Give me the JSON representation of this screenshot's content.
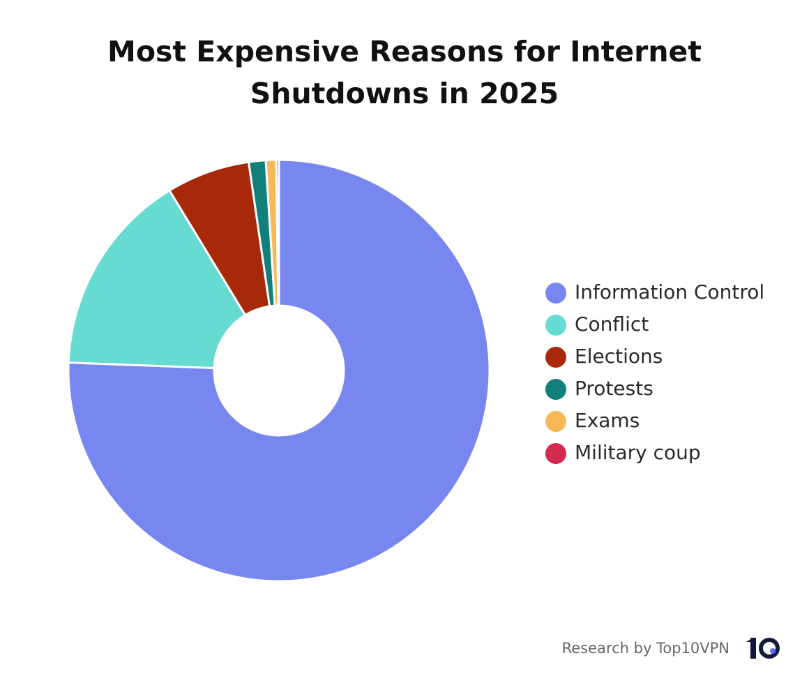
{
  "chart_data": {
    "type": "donut",
    "title": "Most Expensive Reasons for Internet Shutdowns in 2025",
    "categories": [
      "Information Control",
      "Conflict",
      "Elections",
      "Protests",
      "Exams",
      "Military coup"
    ],
    "values": [
      75.6,
      15.7,
      6.4,
      1.3,
      0.8,
      0.2
    ],
    "colors": [
      "#7886f0",
      "#66dbd1",
      "#a8280a",
      "#12807a",
      "#f7b858",
      "#d42a4f"
    ],
    "legend": "right",
    "source": "Research by Top10VPN"
  }
}
